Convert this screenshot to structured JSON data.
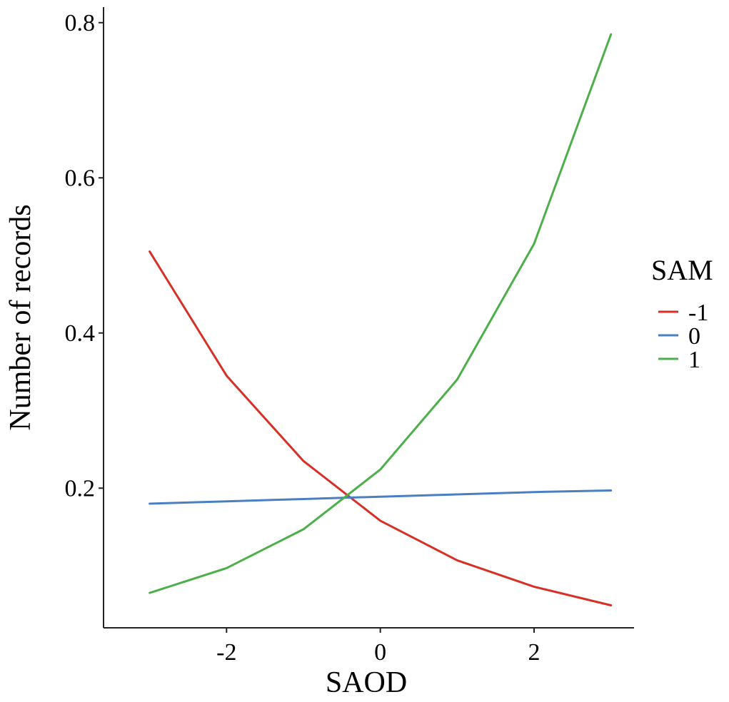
{
  "chart_data": {
    "type": "line",
    "xlabel": "SAOD",
    "ylabel": "Number of records",
    "x": [
      -3,
      -2,
      -1,
      0,
      1,
      2,
      3
    ],
    "xlim": [
      -3.6,
      3.3
    ],
    "ylim": [
      0.02,
      0.82
    ],
    "xticks": [
      -2,
      0,
      2
    ],
    "xtick_labels": [
      "-2",
      "0",
      "2"
    ],
    "yticks": [
      0.2,
      0.4,
      0.6,
      0.8
    ],
    "ytick_labels": [
      "0.2",
      "0.4",
      "0.6",
      "0.8"
    ],
    "grid": false,
    "legend": {
      "title": "SAM",
      "position": "right"
    },
    "series": [
      {
        "name": "-1",
        "color": "#d73027",
        "values": [
          0.505,
          0.345,
          0.235,
          0.158,
          0.107,
          0.073,
          0.049
        ]
      },
      {
        "name": "0",
        "color": "#4a7fc1",
        "values": [
          0.18,
          0.183,
          0.186,
          0.189,
          0.192,
          0.195,
          0.197
        ]
      },
      {
        "name": "1",
        "color": "#4daf4a",
        "values": [
          0.065,
          0.097,
          0.147,
          0.224,
          0.34,
          0.515,
          0.785
        ]
      }
    ]
  }
}
